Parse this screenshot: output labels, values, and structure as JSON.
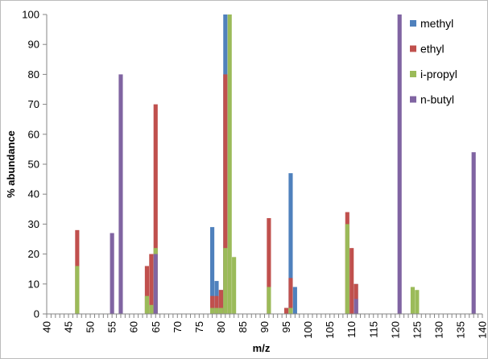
{
  "chart_data": {
    "type": "bar",
    "title": "",
    "xlabel": "m/z",
    "ylabel": "% abundance",
    "xlim": [
      40,
      140
    ],
    "ylim": [
      0,
      100
    ],
    "x_ticks": [
      "40",
      "45",
      "50",
      "55",
      "60",
      "65",
      "70",
      "75",
      "80",
      "85",
      "90",
      "95",
      "100",
      "105",
      "110",
      "115",
      "120",
      "125",
      "130",
      "135",
      "140"
    ],
    "y_ticks": [
      "0",
      "10",
      "20",
      "30",
      "40",
      "50",
      "60",
      "70",
      "80",
      "90",
      "100"
    ],
    "grid": false,
    "legend_position": "top-right",
    "series": [
      {
        "name": "methyl",
        "color": "#4f81bd",
        "points": [
          [
            78,
            29
          ],
          [
            79,
            11
          ],
          [
            80,
            8
          ],
          [
            81,
            100
          ],
          [
            95,
            2
          ],
          [
            96,
            47
          ],
          [
            97,
            9
          ],
          [
            111,
            10
          ]
        ]
      },
      {
        "name": "ethyl",
        "color": "#c0504d",
        "points": [
          [
            47,
            28
          ],
          [
            63,
            16
          ],
          [
            64,
            20
          ],
          [
            65,
            70
          ],
          [
            78,
            6
          ],
          [
            79,
            6
          ],
          [
            80,
            8
          ],
          [
            81,
            80
          ],
          [
            91,
            32
          ],
          [
            95,
            2
          ],
          [
            96,
            12
          ],
          [
            109,
            34
          ],
          [
            110,
            22
          ],
          [
            111,
            10
          ]
        ]
      },
      {
        "name": "i-propyl",
        "color": "#9bbb59",
        "points": [
          [
            47,
            16
          ],
          [
            63,
            6
          ],
          [
            64,
            3
          ],
          [
            65,
            22
          ],
          [
            78,
            2
          ],
          [
            79,
            2
          ],
          [
            80,
            2
          ],
          [
            81,
            22
          ],
          [
            82,
            100
          ],
          [
            83,
            19
          ],
          [
            91,
            9
          ],
          [
            96,
            2
          ],
          [
            109,
            30
          ],
          [
            124,
            9
          ],
          [
            125,
            8
          ]
        ]
      },
      {
        "name": "n-butyl",
        "color": "#8064a2",
        "points": [
          [
            55,
            27
          ],
          [
            57,
            80
          ],
          [
            65,
            20
          ],
          [
            111,
            5
          ],
          [
            121,
            100
          ],
          [
            138,
            54
          ]
        ]
      }
    ]
  }
}
